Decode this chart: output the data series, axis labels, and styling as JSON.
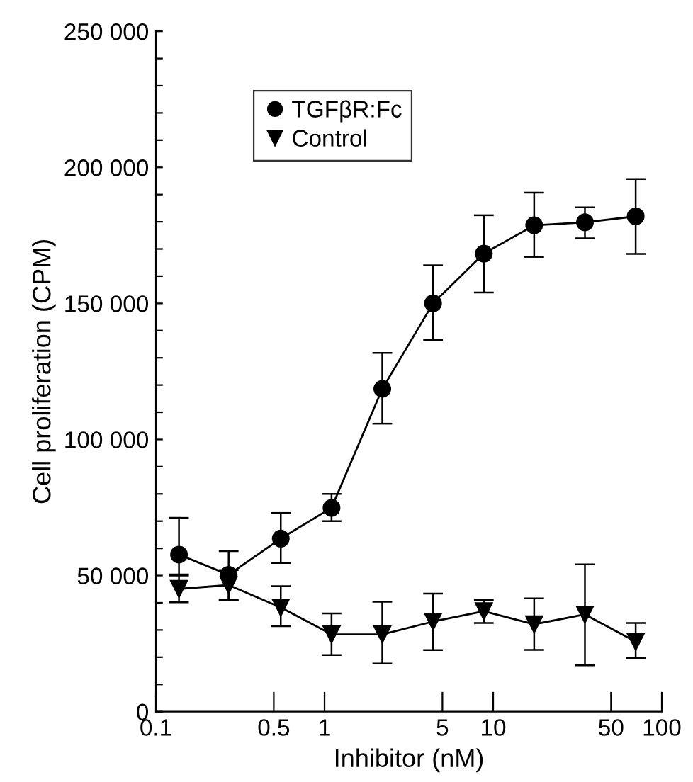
{
  "chart_data": {
    "type": "line",
    "xlabel": "Inhibitor (nM)",
    "ylabel": "Cell proliferation (CPM)",
    "log": "x",
    "x": [
      0.137,
      0.27,
      0.55,
      1.1,
      2.2,
      4.4,
      8.8,
      17.5,
      35,
      70
    ],
    "xlim": [
      0.1,
      100
    ],
    "xticks": [
      0.1,
      0.5,
      1,
      5,
      10,
      50,
      100
    ],
    "ylim": [
      0,
      250000
    ],
    "yticks": [
      {
        "value": 0,
        "label": "0"
      },
      {
        "value": 10000,
        "label": null
      },
      {
        "value": 20000,
        "label": null
      },
      {
        "value": 30000,
        "label": null
      },
      {
        "value": 40000,
        "label": null
      },
      {
        "value": 50000,
        "label": "50 000"
      },
      {
        "value": 60000,
        "label": null
      },
      {
        "value": 70000,
        "label": null
      },
      {
        "value": 80000,
        "label": null
      },
      {
        "value": 90000,
        "label": null
      },
      {
        "value": 100000,
        "label": "100 000"
      },
      {
        "value": 110000,
        "label": null
      },
      {
        "value": 120000,
        "label": null
      },
      {
        "value": 130000,
        "label": null
      },
      {
        "value": 140000,
        "label": null
      },
      {
        "value": 150000,
        "label": "150 000"
      },
      {
        "value": 160000,
        "label": null
      },
      {
        "value": 170000,
        "label": null
      },
      {
        "value": 180000,
        "label": null
      },
      {
        "value": 190000,
        "label": null
      },
      {
        "value": 200000,
        "label": "200 000"
      },
      {
        "value": 210000,
        "label": null
      },
      {
        "value": 220000,
        "label": null
      },
      {
        "value": 230000,
        "label": null
      },
      {
        "value": 240000,
        "label": null
      },
      {
        "value": 250000,
        "label": "250 000"
      }
    ],
    "legend": "top left",
    "grid": false,
    "line_style": "solid",
    "series": [
      {
        "name": "TGFβR:Fc",
        "color": "#000000",
        "marker": "circle",
        "values": [
          57700,
          50300,
          63600,
          74900,
          118600,
          150000,
          168300,
          178700,
          179800,
          182000
        ],
        "errors": [
          [
            50000,
            71200
          ],
          [
            41000,
            59000
          ],
          [
            54600,
            73000
          ],
          [
            70000,
            80000
          ],
          [
            105800,
            131800
          ],
          [
            136600,
            164000
          ],
          [
            154000,
            182400
          ],
          [
            167100,
            190700
          ],
          [
            173900,
            185300
          ],
          [
            168200,
            195700
          ]
        ]
      },
      {
        "name": "Control",
        "color": "#000000",
        "marker": "triangle",
        "values": [
          45100,
          46500,
          38300,
          28400,
          28400,
          33100,
          36900,
          32100,
          35700,
          25700
        ],
        "errors": [
          [
            40200,
            50400
          ],
          [
            41000,
            52000
          ],
          [
            31400,
            46100
          ],
          [
            20800,
            36100
          ],
          [
            17700,
            40400
          ],
          [
            22600,
            43400
          ],
          [
            32600,
            41100
          ],
          [
            22700,
            41600
          ],
          [
            17000,
            54100
          ],
          [
            19600,
            32600
          ]
        ]
      }
    ]
  }
}
